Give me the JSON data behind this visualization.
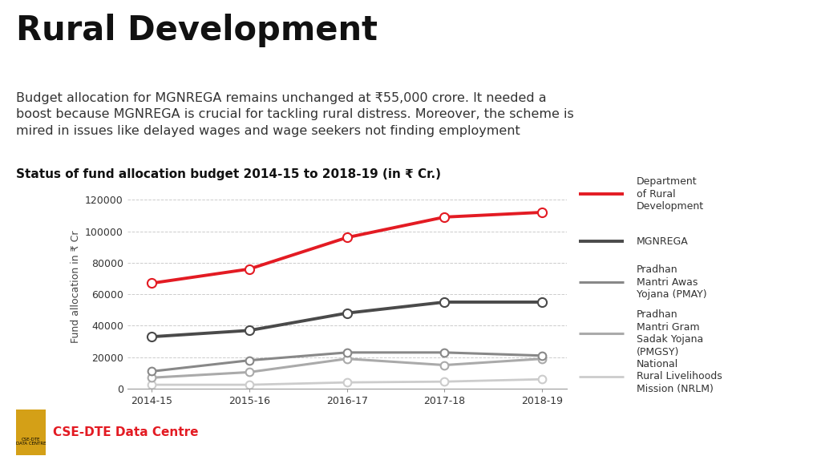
{
  "title": "Rural Development",
  "subtitle": "Budget allocation for MGNREGA remains unchanged at ₹55,000 crore. It needed a\nboost because MGNREGA is crucial for tackling rural distress. Moreover, the scheme is\nmired in issues like delayed wages and wage seekers not finding employment",
  "chart_title": "Status of fund allocation budget 2014-15 to 2018-19 (in ₹ Cr.)",
  "ylabel": "Fund allocation in ₹ Cr",
  "years": [
    "2014-15",
    "2015-16",
    "2016-17",
    "2017-18",
    "2018-19"
  ],
  "series": [
    {
      "name": "Department\nof Rural\nDevelopment",
      "values": [
        67000,
        76000,
        96000,
        109000,
        112000
      ],
      "color": "#e31b23",
      "linewidth": 2.8,
      "markersize": 8,
      "zorder": 5
    },
    {
      "name": "MGNREGA",
      "values": [
        33000,
        37000,
        48000,
        55000,
        55000
      ],
      "color": "#4a4a4a",
      "linewidth": 2.8,
      "markersize": 8,
      "zorder": 4
    },
    {
      "name": "Pradhan\nMantri Awas\nYojana (PMAY)",
      "values": [
        11000,
        18000,
        23000,
        23000,
        21000
      ],
      "color": "#888888",
      "linewidth": 2.2,
      "markersize": 7,
      "zorder": 3
    },
    {
      "name": "Pradhan\nMantri Gram\nSadak Yojana\n(PMGSY)",
      "values": [
        7000,
        10500,
        19000,
        15000,
        19000
      ],
      "color": "#aaaaaa",
      "linewidth": 2.2,
      "markersize": 7,
      "zorder": 2
    },
    {
      "name": "National\nRural Livelihoods\nMission (NRLM)",
      "values": [
        2500,
        2500,
        4000,
        4500,
        6000
      ],
      "color": "#cccccc",
      "linewidth": 2.0,
      "markersize": 7,
      "zorder": 1
    }
  ],
  "ylim": [
    0,
    130000
  ],
  "yticks": [
    0,
    20000,
    40000,
    60000,
    80000,
    100000,
    120000
  ],
  "background_color": "#ffffff",
  "grid_color": "#cccccc",
  "title_fontsize": 30,
  "subtitle_fontsize": 11.5,
  "chart_title_fontsize": 11,
  "axis_label_fontsize": 9,
  "tick_fontsize": 9,
  "legend_fontsize": 9,
  "footer_text": "CSE-DTE Data Centre",
  "footer_color": "#e31b23",
  "logo_color": "#d4a017"
}
